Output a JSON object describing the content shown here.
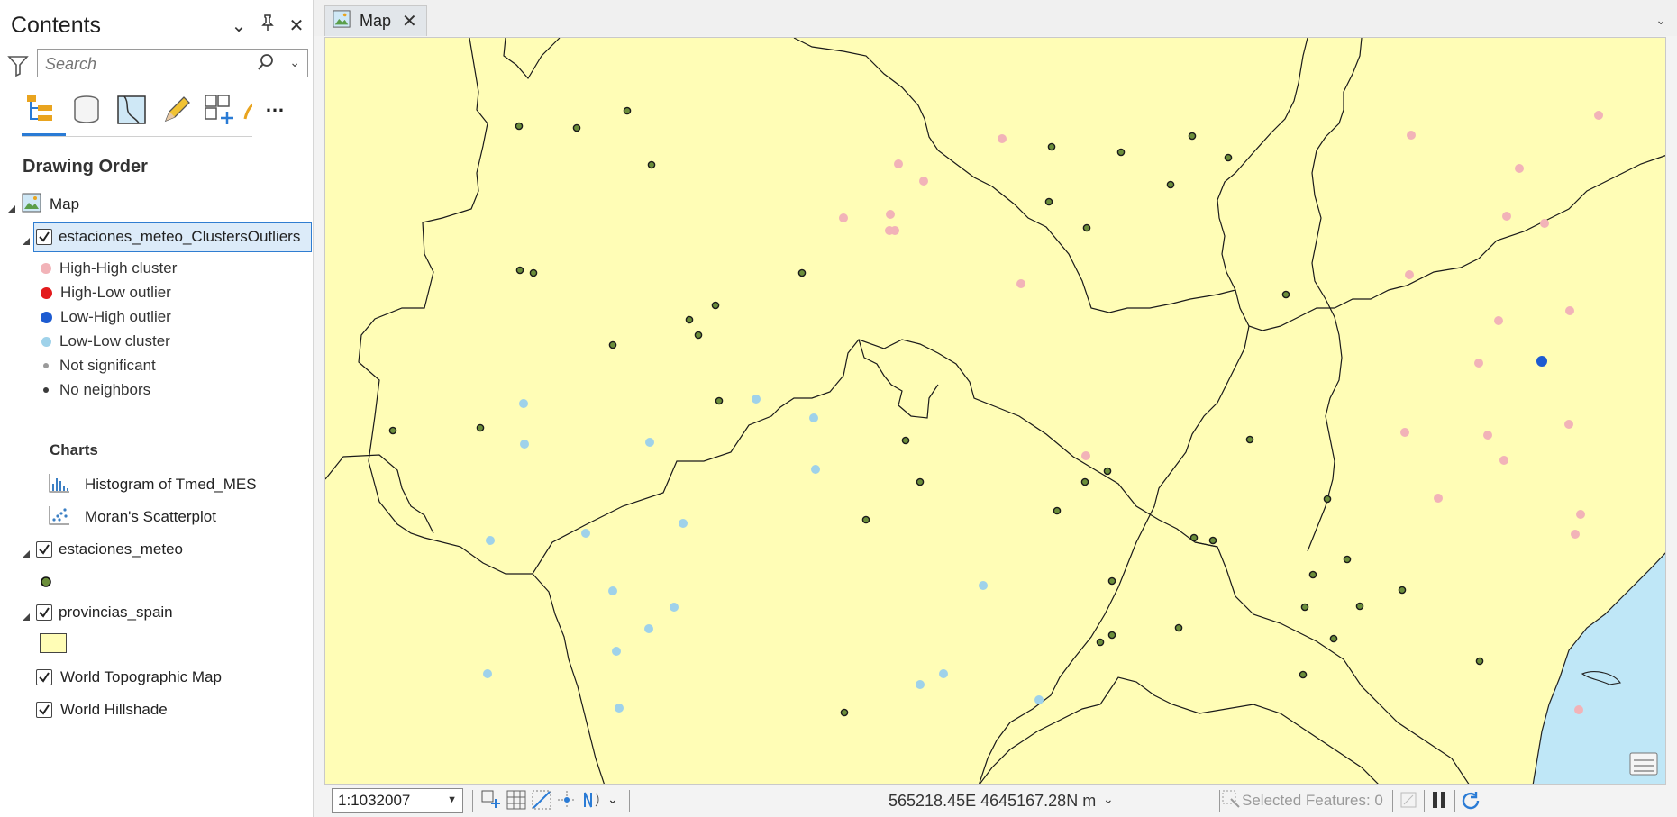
{
  "contents": {
    "title": "Contents",
    "search_placeholder": "Search",
    "section_heading": "Drawing Order",
    "map_node": "Map",
    "layers": {
      "clusters": "estaciones_meteo_ClustersOutliers",
      "estaciones": "estaciones_meteo",
      "provincias": "provincias_spain",
      "topo": "World Topographic Map",
      "hillshade": "World Hillshade"
    },
    "legend": [
      {
        "label": "High-High cluster",
        "color": "#f2b3b8"
      },
      {
        "label": "High-Low outlier",
        "color": "#e31a1c"
      },
      {
        "label": "Low-High outlier",
        "color": "#1d5bd1"
      },
      {
        "label": "Low-Low cluster",
        "color": "#9fd2ea"
      },
      {
        "label": "Not significant",
        "color": "#9a9a9a"
      },
      {
        "label": "No neighbors",
        "color": "#3a3a3a"
      }
    ],
    "charts_heading": "Charts",
    "charts": [
      {
        "label": "Histogram of Tmed_MES",
        "icon": "histogram-icon"
      },
      {
        "label": "Moran's Scatterplot",
        "icon": "scatterplot-icon"
      }
    ],
    "colors": {
      "province_fill": "#fffdb6",
      "station_fill": "#6b8e3a",
      "water": "#bfe7f7",
      "selection": "#dcebf9",
      "accent": "#2a7bd5"
    }
  },
  "map": {
    "tab_label": "Map",
    "scale": "1:1032007",
    "coordinates": "565218.45E 4645167.28N m",
    "selected_features": "Selected Features: 0"
  }
}
